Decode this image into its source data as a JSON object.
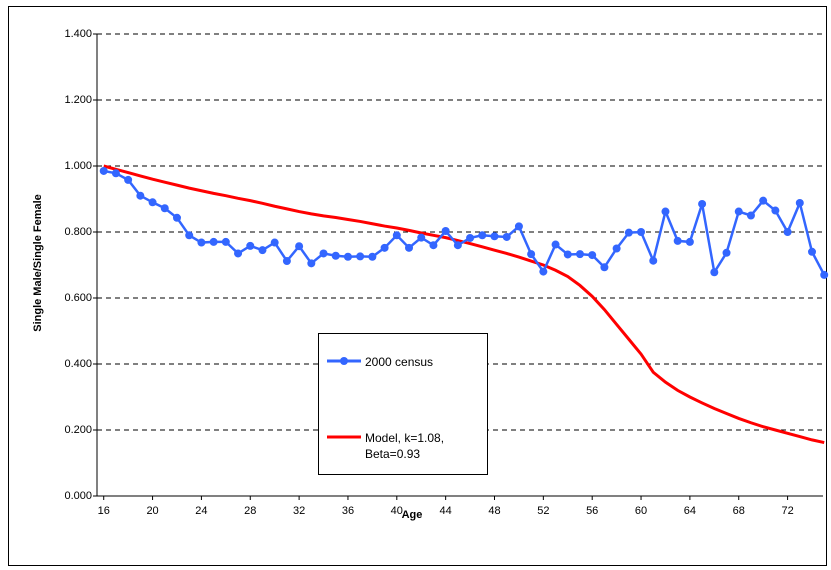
{
  "chart_data": {
    "type": "line",
    "x_label": "Age",
    "y_label": "Single Male/Single Female",
    "x": [
      16,
      17,
      18,
      19,
      20,
      21,
      22,
      23,
      24,
      25,
      26,
      27,
      28,
      29,
      30,
      31,
      32,
      33,
      34,
      35,
      36,
      37,
      38,
      39,
      40,
      41,
      42,
      43,
      44,
      45,
      46,
      47,
      48,
      49,
      50,
      51,
      52,
      53,
      54,
      55,
      56,
      57,
      58,
      59,
      60,
      61,
      62,
      63,
      64,
      65,
      66,
      67,
      68,
      69,
      70,
      71,
      72,
      73,
      74,
      75
    ],
    "series": [
      {
        "name": "2000 census",
        "color": "#3366ff",
        "marker": true,
        "values": [
          0.985,
          0.978,
          0.958,
          0.91,
          0.89,
          0.872,
          0.843,
          0.79,
          0.768,
          0.77,
          0.77,
          0.735,
          0.758,
          0.745,
          0.768,
          0.712,
          0.757,
          0.705,
          0.735,
          0.728,
          0.725,
          0.726,
          0.725,
          0.752,
          0.79,
          0.752,
          0.783,
          0.76,
          0.803,
          0.76,
          0.782,
          0.79,
          0.787,
          0.785,
          0.817,
          0.733,
          0.68,
          0.762,
          0.732,
          0.733,
          0.73,
          0.693,
          0.75,
          0.798,
          0.8,
          0.713,
          0.862,
          0.773,
          0.77,
          0.885,
          0.678,
          0.737,
          0.862,
          0.85,
          0.895,
          0.865,
          0.8,
          0.888,
          0.74,
          0.67
        ]
      },
      {
        "name": "Model, k=1.08, Beta=0.93",
        "color": "#ff0000",
        "marker": false,
        "values": [
          1.0,
          0.99,
          0.98,
          0.97,
          0.96,
          0.951,
          0.942,
          0.933,
          0.925,
          0.917,
          0.91,
          0.902,
          0.895,
          0.887,
          0.878,
          0.87,
          0.862,
          0.855,
          0.849,
          0.844,
          0.838,
          0.832,
          0.825,
          0.818,
          0.812,
          0.805,
          0.797,
          0.79,
          0.783,
          0.774,
          0.765,
          0.755,
          0.745,
          0.735,
          0.724,
          0.712,
          0.7,
          0.684,
          0.665,
          0.638,
          0.605,
          0.565,
          0.52,
          0.475,
          0.43,
          0.375,
          0.345,
          0.32,
          0.3,
          0.282,
          0.265,
          0.25,
          0.235,
          0.222,
          0.21,
          0.2,
          0.19,
          0.18,
          0.17,
          0.162
        ]
      }
    ],
    "xlim": [
      15.45,
      74.9
    ],
    "xticks": [
      16,
      20,
      24,
      28,
      32,
      36,
      40,
      44,
      48,
      52,
      56,
      60,
      64,
      68,
      72
    ],
    "ylim": [
      0,
      1.4
    ],
    "yticks": [
      {
        "value": 0,
        "label": "0.000"
      },
      {
        "value": 0.2,
        "label": "0.200"
      },
      {
        "value": 0.4,
        "label": "0.400"
      },
      {
        "value": 0.6,
        "label": "0.600"
      },
      {
        "value": 0.8,
        "label": "0.800"
      },
      {
        "value": 1.0,
        "label": "1.000"
      },
      {
        "value": 1.2,
        "label": "1.200"
      },
      {
        "value": 1.4,
        "label": "1.400"
      }
    ],
    "grid": true
  }
}
